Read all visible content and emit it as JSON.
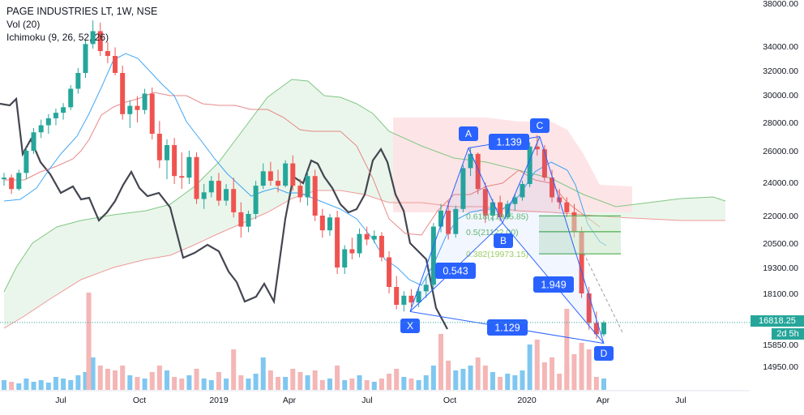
{
  "legend": {
    "symbol": "PAGE INDUSTRIES LT, 1W, NSE",
    "vol": "Vol (20)",
    "ichimoku": "Ichimoku (9, 26, 52, 26)"
  },
  "price_badge": "16818.25",
  "time_badge": "2d 5h",
  "chart_data": {
    "type": "candlestick",
    "y_ticks": [
      "38000.00",
      "34000.00",
      "32000.00",
      "30000.00",
      "28000.00",
      "26000.00",
      "24000.00",
      "22000.00",
      "20500.00",
      "19300.00",
      "18100.00",
      "15850.00",
      "14950.00"
    ],
    "y_tick_values": [
      38000,
      34000,
      32000,
      30000,
      28000,
      26000,
      24000,
      22000,
      20500,
      19300,
      18100,
      15850,
      14950
    ],
    "x_ticks": [
      "Jul",
      "Oct",
      "2019",
      "Apr",
      "Jul",
      "Oct",
      "2020",
      "Apr",
      "Jul"
    ],
    "ohlc_weekly_approx": [
      [
        24200,
        24600,
        23800,
        24300
      ],
      [
        24300,
        24500,
        23300,
        23600
      ],
      [
        23600,
        24800,
        23500,
        24600
      ],
      [
        24600,
        26200,
        24200,
        26000
      ],
      [
        26000,
        27600,
        25800,
        27300
      ],
      [
        27300,
        28200,
        26900,
        27800
      ],
      [
        27800,
        28600,
        27200,
        28300
      ],
      [
        28300,
        29000,
        27800,
        28700
      ],
      [
        28700,
        29400,
        28200,
        29100
      ],
      [
        29100,
        30800,
        28900,
        30500
      ],
      [
        30500,
        32200,
        30100,
        31800
      ],
      [
        31800,
        34600,
        31400,
        34200
      ],
      [
        34200,
        36400,
        33800,
        35400
      ],
      [
        35400,
        36200,
        33200,
        33600
      ],
      [
        33600,
        34400,
        32600,
        33200
      ],
      [
        33200,
        33900,
        31600,
        31800
      ],
      [
        31800,
        32400,
        28200,
        28600
      ],
      [
        28600,
        29600,
        27600,
        29200
      ],
      [
        29200,
        29900,
        28000,
        28900
      ],
      [
        28900,
        30500,
        28600,
        30100
      ],
      [
        30100,
        30600,
        26800,
        27200
      ],
      [
        27200,
        28100,
        24900,
        25400
      ],
      [
        25400,
        26800,
        24200,
        26400
      ],
      [
        26400,
        26900,
        23900,
        24400
      ],
      [
        24400,
        25900,
        23600,
        24300
      ],
      [
        24300,
        26000,
        23900,
        25600
      ],
      [
        25600,
        25900,
        22700,
        23000
      ],
      [
        23000,
        23900,
        22400,
        23400
      ],
      [
        23400,
        24400,
        23100,
        24100
      ],
      [
        24100,
        24600,
        22600,
        22900
      ],
      [
        22900,
        23900,
        22600,
        23600
      ],
      [
        23600,
        24300,
        21900,
        22200
      ],
      [
        22200,
        22800,
        20800,
        21400
      ],
      [
        21400,
        22300,
        21100,
        22100
      ],
      [
        22100,
        24100,
        21800,
        23800
      ],
      [
        23800,
        25200,
        23600,
        24700
      ],
      [
        24700,
        25300,
        23800,
        24100
      ],
      [
        24100,
        24800,
        23400,
        23800
      ],
      [
        23800,
        25400,
        23700,
        25200
      ],
      [
        25200,
        25700,
        23500,
        23800
      ],
      [
        23800,
        24200,
        22800,
        23100
      ],
      [
        23100,
        24700,
        22600,
        24400
      ],
      [
        24400,
        24800,
        21700,
        22000
      ],
      [
        22000,
        22400,
        20800,
        21200
      ],
      [
        21200,
        22100,
        20900,
        21900
      ],
      [
        21900,
        22300,
        19000,
        19300
      ],
      [
        19300,
        20400,
        19000,
        20200
      ],
      [
        20200,
        20800,
        19700,
        20000
      ],
      [
        20000,
        21300,
        19800,
        21000
      ],
      [
        21000,
        21400,
        20400,
        20700
      ],
      [
        20700,
        21200,
        20500,
        20900
      ],
      [
        20900,
        21100,
        19600,
        19800
      ],
      [
        19800,
        20100,
        18100,
        18400
      ],
      [
        18400,
        18900,
        17400,
        17600
      ],
      [
        17600,
        18200,
        17300,
        18000
      ],
      [
        18000,
        18300,
        17500,
        17700
      ],
      [
        17700,
        18400,
        17500,
        18200
      ],
      [
        18200,
        18900,
        17900,
        18500
      ],
      [
        18500,
        21600,
        18300,
        21400
      ],
      [
        21400,
        22700,
        21100,
        22300
      ],
      [
        22300,
        22900,
        20700,
        21000
      ],
      [
        21000,
        22600,
        20800,
        22400
      ],
      [
        22400,
        25100,
        22200,
        24900
      ],
      [
        24900,
        26200,
        24400,
        25800
      ],
      [
        25800,
        25900,
        23300,
        23600
      ],
      [
        23600,
        24000,
        21600,
        22000
      ],
      [
        22000,
        23000,
        21700,
        22800
      ],
      [
        22800,
        23200,
        21700,
        21900
      ],
      [
        21900,
        22900,
        21800,
        22700
      ],
      [
        22700,
        23300,
        22300,
        23100
      ],
      [
        23100,
        24100,
        22900,
        23900
      ],
      [
        23900,
        26600,
        23700,
        26300
      ],
      [
        26300,
        27100,
        25700,
        26100
      ],
      [
        26100,
        26400,
        24100,
        24300
      ],
      [
        24300,
        24800,
        22800,
        23100
      ],
      [
        23100,
        23600,
        22400,
        22800
      ],
      [
        22800,
        23100,
        21900,
        22200
      ],
      [
        22200,
        22700,
        20800,
        21100
      ],
      [
        21100,
        21400,
        17900,
        18100
      ],
      [
        18100,
        18400,
        16500,
        16800
      ],
      [
        16800,
        17300,
        16100,
        16300
      ],
      [
        16300,
        16900,
        16200,
        16818
      ]
    ],
    "annotations": [
      {
        "label": "X",
        "value": 17300
      },
      {
        "label": "A",
        "value": 26200
      },
      {
        "label": "B",
        "value": 21600
      },
      {
        "label": "C",
        "value": 27000
      },
      {
        "label": "D",
        "value": 15900
      }
    ],
    "ratios": [
      {
        "value": "0.543"
      },
      {
        "value": "1.139"
      },
      {
        "value": "1.949"
      },
      {
        "value": "1.129"
      }
    ],
    "fib_levels": [
      {
        "label": "0.618(21985.85)",
        "value": 21985.85
      },
      {
        "label": "0.5(21122.00)",
        "value": 21122.0
      },
      {
        "label": "0.382(19973.15)",
        "value": 19973.15
      }
    ],
    "colors": {
      "up": "#26a69a",
      "down": "#ef5350",
      "pattern": "#2962ff",
      "vol_up": "#7fc7f0",
      "vol_down": "#f4b6b6",
      "tenkan": "#2196f3",
      "kijun": "#e57373",
      "lagging": "#434651",
      "cloud_up": "#e8f5e9",
      "cloud_down": "#fde4e6",
      "fib_green": "#4caf50"
    }
  }
}
